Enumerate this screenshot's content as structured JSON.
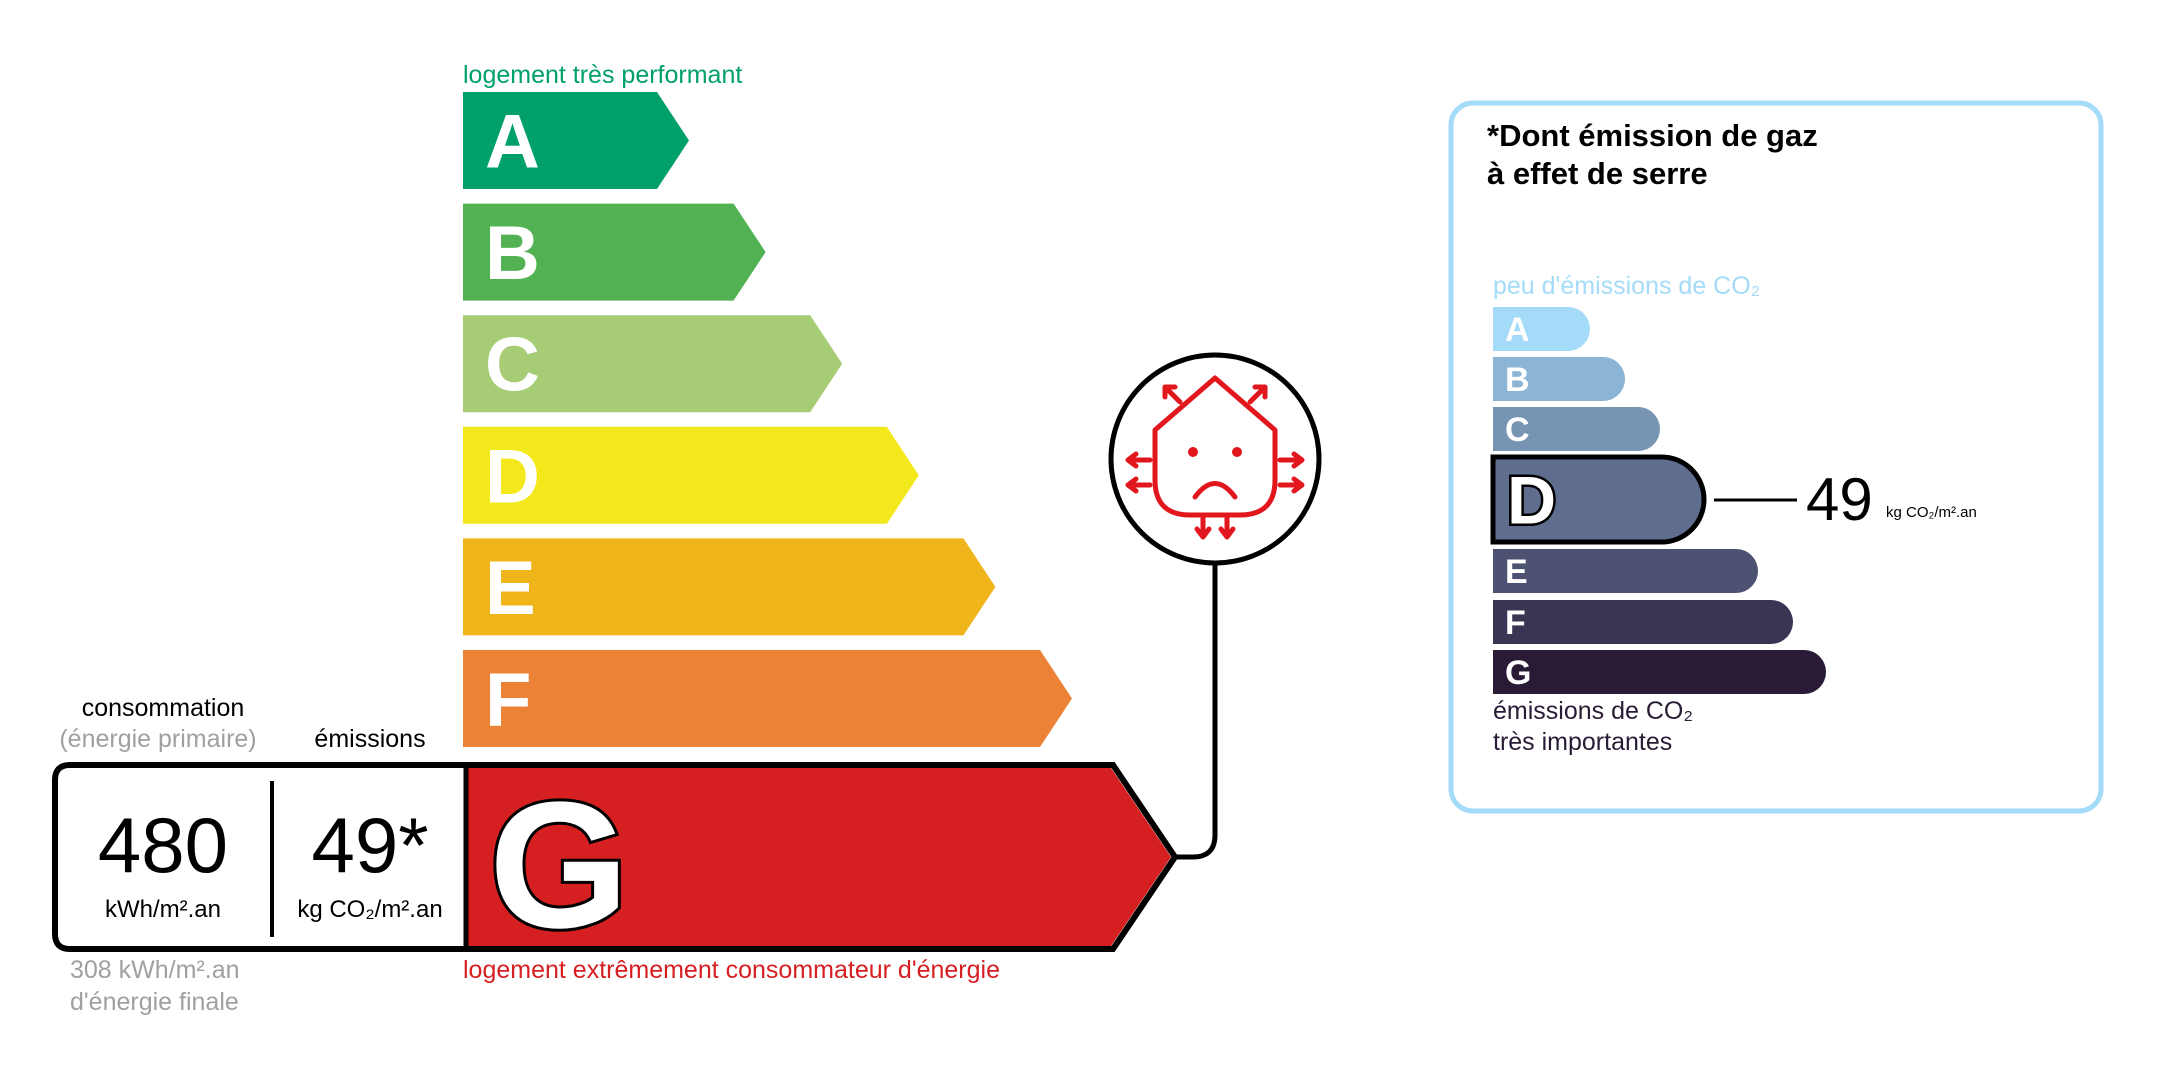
{
  "energy": {
    "top_label": "logement très performant",
    "bottom_label": "logement extrêmement consommateur d'énergie",
    "classes": [
      {
        "letter": "A",
        "color": "#00a06b"
      },
      {
        "letter": "B",
        "color": "#52b153"
      },
      {
        "letter": "C",
        "color": "#a6cd75"
      },
      {
        "letter": "D",
        "color": "#f2e81b"
      },
      {
        "letter": "E",
        "color": "#f0b51b"
      },
      {
        "letter": "F",
        "color": "#eb8235"
      },
      {
        "letter": "G",
        "color": "#d61f21"
      }
    ],
    "current_class": "G",
    "consumption_header": "consommation",
    "consumption_subheader": "(énergie primaire)",
    "emissions_header": "émissions",
    "consumption_value": "480",
    "consumption_unit": "kWh/m².an",
    "emissions_value": "49*",
    "emissions_unit": "kg CO₂/m².an",
    "final_energy_line1": "308 kWh/m².an",
    "final_energy_line2": "d'énergie finale",
    "badge_icon": "house-heat-loss-sad-icon",
    "badge_color": "#e2161d"
  },
  "ghg": {
    "title_line1": "*Dont émission de gaz",
    "title_line2": "à effet de serre",
    "top_label": "peu d'émissions de CO₂",
    "bottom_label_line1": "émissions de CO₂",
    "bottom_label_line2": "très importantes",
    "classes": [
      {
        "letter": "A",
        "color": "#a4dbf8"
      },
      {
        "letter": "B",
        "color": "#8cb4d4"
      },
      {
        "letter": "C",
        "color": "#7794b3"
      },
      {
        "letter": "D",
        "color": "#5f6e8f"
      },
      {
        "letter": "E",
        "color": "#4d5172"
      },
      {
        "letter": "F",
        "color": "#393552"
      },
      {
        "letter": "G",
        "color": "#291b35"
      }
    ],
    "current_class": "D",
    "value": "49",
    "unit": "kg CO₂/m².an",
    "border_color": "#a4dbf8"
  }
}
